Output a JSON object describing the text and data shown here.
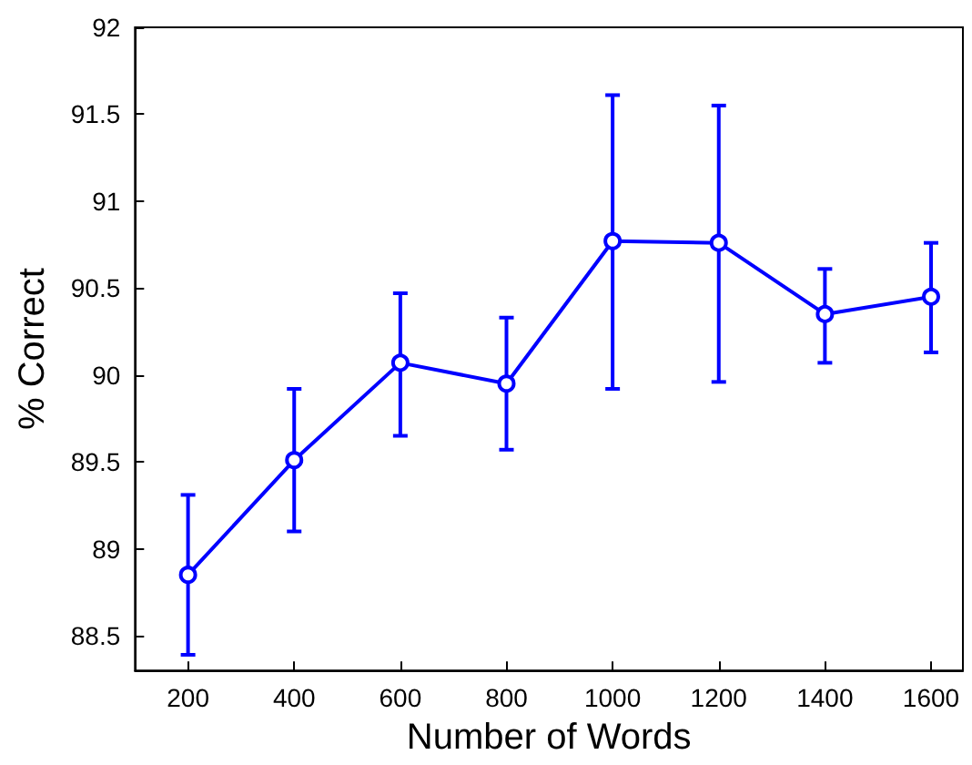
{
  "chart_data": {
    "type": "line",
    "xlabel": "Number of Words",
    "ylabel": "% Correct",
    "x": [
      200,
      400,
      600,
      800,
      1000,
      1200,
      1400,
      1600
    ],
    "series": [
      {
        "color": "#0000ff",
        "values": [
          88.85,
          89.51,
          90.07,
          89.95,
          90.77,
          90.76,
          90.35,
          90.45
        ],
        "errors": [
          [
            88.39,
            89.31
          ],
          [
            89.1,
            89.92
          ],
          [
            89.65,
            90.47
          ],
          [
            89.57,
            90.33
          ],
          [
            89.92,
            91.61
          ],
          [
            89.96,
            91.55
          ],
          [
            90.07,
            90.61
          ],
          [
            90.13,
            90.76
          ]
        ]
      }
    ],
    "xlim": [
      100,
      1660
    ],
    "xticks": [
      200,
      400,
      600,
      800,
      1000,
      1200,
      1400,
      1600
    ],
    "ylim": [
      88.3,
      92
    ],
    "yticks": [
      88.5,
      89,
      89.5,
      90,
      90.5,
      91,
      91.5,
      92
    ],
    "grid": false,
    "marker": "circle",
    "line_style": "solid"
  }
}
